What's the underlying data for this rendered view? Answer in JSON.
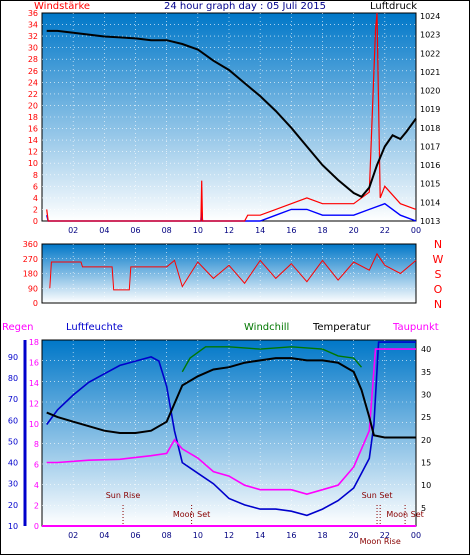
{
  "title": "24 hour graph day : 05 Juli 2015",
  "colors": {
    "frame": "#000000",
    "plot_top": "#0077c8",
    "plot_bottom": "#ffffff",
    "grid": "#ffffff",
    "wind": "#ff0000",
    "gust": "#0000ff",
    "pressure": "#000000",
    "direction": "#ff0000",
    "rain": "#ff00ff",
    "humidity": "#0000cc",
    "windchill": "#007700",
    "temperature": "#000000",
    "dewpoint": "#ff00ff",
    "sunmoon": "#880000",
    "bottom_bar": "#ff00ff"
  },
  "chart_data": [
    {
      "id": "wind",
      "type": "line",
      "left_label": "Windstärke",
      "right_label": "Luftdruck",
      "x_ticks": [
        "02",
        "04",
        "06",
        "08",
        "10",
        "12",
        "14",
        "16",
        "18",
        "20",
        "22",
        "00"
      ],
      "y_left_ticks": [
        0,
        2,
        4,
        6,
        8,
        10,
        12,
        14,
        16,
        18,
        20,
        22,
        24,
        26,
        28,
        30,
        32,
        34,
        36
      ],
      "y_left_range": [
        0,
        36
      ],
      "y_right_ticks": [
        1013,
        1014,
        1015,
        1016,
        1017,
        1018,
        1019,
        1020,
        1021,
        1022,
        1023,
        1024
      ],
      "y_right_range": [
        1013,
        1024
      ],
      "grid": true,
      "series": [
        {
          "key": "pressure",
          "axis": "right",
          "points": [
            [
              0.3,
              1023.2
            ],
            [
              1,
              1023.2
            ],
            [
              2,
              1023.1
            ],
            [
              3,
              1023
            ],
            [
              4,
              1022.9
            ],
            [
              5,
              1022.85
            ],
            [
              6,
              1022.8
            ],
            [
              7,
              1022.7
            ],
            [
              8,
              1022.7
            ],
            [
              9,
              1022.5
            ],
            [
              10,
              1022.2
            ],
            [
              11,
              1021.6
            ],
            [
              12,
              1021.1
            ],
            [
              13,
              1020.4
            ],
            [
              14,
              1019.7
            ],
            [
              15,
              1018.9
            ],
            [
              16,
              1018
            ],
            [
              17,
              1017
            ],
            [
              18,
              1016
            ],
            [
              19,
              1015.2
            ],
            [
              20,
              1014.5
            ],
            [
              20.5,
              1014.3
            ],
            [
              21,
              1014.8
            ],
            [
              21.5,
              1016
            ],
            [
              22,
              1017
            ],
            [
              22.5,
              1017.6
            ],
            [
              23,
              1017.4
            ],
            [
              23.4,
              1017.8
            ],
            [
              24,
              1018.5
            ]
          ]
        },
        {
          "key": "wind",
          "axis": "left",
          "points": [
            [
              0.3,
              2
            ],
            [
              0.4,
              0
            ],
            [
              10.2,
              0
            ],
            [
              10.25,
              7
            ],
            [
              10.3,
              0
            ],
            [
              13,
              0
            ],
            [
              13.2,
              1
            ],
            [
              14,
              1
            ],
            [
              15,
              2
            ],
            [
              16,
              3
            ],
            [
              17,
              4
            ],
            [
              18,
              3
            ],
            [
              19,
              3
            ],
            [
              20,
              3
            ],
            [
              21,
              5
            ],
            [
              21.4,
              33
            ],
            [
              21.5,
              36
            ],
            [
              21.7,
              4
            ],
            [
              22,
              6
            ],
            [
              23,
              3
            ],
            [
              24,
              2
            ]
          ]
        },
        {
          "key": "gust",
          "axis": "left",
          "points": [
            [
              0.3,
              1
            ],
            [
              0.4,
              0
            ],
            [
              10.2,
              0
            ],
            [
              10.25,
              2
            ],
            [
              10.3,
              0
            ],
            [
              14,
              0
            ],
            [
              15,
              1
            ],
            [
              16,
              2
            ],
            [
              17,
              2
            ],
            [
              18,
              1
            ],
            [
              19,
              1
            ],
            [
              20,
              1
            ],
            [
              21,
              2
            ],
            [
              22,
              3
            ],
            [
              23,
              1
            ],
            [
              24,
              0
            ]
          ]
        }
      ]
    },
    {
      "id": "direction",
      "type": "line",
      "y_left_ticks": [
        0,
        90,
        180,
        270,
        360
      ],
      "y_left_range": [
        0,
        360
      ],
      "y_right_ticks": [
        "N",
        "W",
        "S",
        "O",
        "N"
      ],
      "grid": true,
      "series": [
        {
          "key": "direction",
          "points": [
            [
              0.5,
              90
            ],
            [
              0.6,
              250
            ],
            [
              2.5,
              250
            ],
            [
              2.6,
              220
            ],
            [
              4.5,
              220
            ],
            [
              4.6,
              80
            ],
            [
              5.6,
              80
            ],
            [
              5.7,
              220
            ],
            [
              8,
              220
            ],
            [
              8.5,
              260
            ],
            [
              9,
              100
            ],
            [
              10,
              250
            ],
            [
              11,
              150
            ],
            [
              12,
              230
            ],
            [
              13,
              120
            ],
            [
              14,
              260
            ],
            [
              15,
              150
            ],
            [
              16,
              240
            ],
            [
              17,
              130
            ],
            [
              18,
              260
            ],
            [
              19,
              140
            ],
            [
              20,
              250
            ],
            [
              21,
              200
            ],
            [
              21.5,
              300
            ],
            [
              22,
              230
            ],
            [
              23,
              180
            ],
            [
              24,
              260
            ]
          ]
        }
      ]
    },
    {
      "id": "temperature",
      "type": "line",
      "labels": [
        "Regen",
        "Luftfeuchte",
        "Windchill",
        "Temperatur",
        "Taupunkt"
      ],
      "x_ticks": [
        "02",
        "04",
        "06",
        "08",
        "10",
        "12",
        "14",
        "16",
        "18",
        "20",
        "22",
        "00"
      ],
      "y_left_ticks": [
        0,
        2,
        4,
        6,
        8,
        10,
        12,
        14,
        16,
        18
      ],
      "y_left_range": [
        0,
        18
      ],
      "y_humidity_ticks": [
        10,
        20,
        30,
        40,
        50,
        60,
        70,
        80,
        90
      ],
      "y_humidity_range": [
        10,
        98
      ],
      "y_right_ticks": [
        5,
        10,
        15,
        20,
        25,
        30,
        35,
        40
      ],
      "y_right_range": [
        1,
        42
      ],
      "grid": true,
      "annotations": [
        {
          "label": "Sun Rise",
          "hour": 5.2
        },
        {
          "label": "Moon Set",
          "hour": 9.6
        },
        {
          "label": "Sun Set",
          "hour": 21.5
        },
        {
          "label": "Moon Rise",
          "hour": 21.7
        },
        {
          "label": "Moon Set",
          "hour": 23.3
        }
      ],
      "series": [
        {
          "key": "humidity",
          "axis": "humidity",
          "points": [
            [
              0.3,
              58
            ],
            [
              1,
              65
            ],
            [
              2,
              72
            ],
            [
              3,
              78
            ],
            [
              4,
              82
            ],
            [
              5,
              86
            ],
            [
              6,
              88
            ],
            [
              7,
              90
            ],
            [
              7.5,
              88
            ],
            [
              8,
              76
            ],
            [
              8.5,
              55
            ],
            [
              9,
              40
            ],
            [
              10,
              35
            ],
            [
              11,
              30
            ],
            [
              12,
              23
            ],
            [
              13,
              20
            ],
            [
              14,
              18
            ],
            [
              15,
              18
            ],
            [
              16,
              17
            ],
            [
              17,
              15
            ],
            [
              18,
              18
            ],
            [
              19,
              22
            ],
            [
              20,
              28
            ],
            [
              20.5,
              35
            ],
            [
              21,
              42
            ],
            [
              21.3,
              58
            ],
            [
              21.6,
              97
            ],
            [
              24,
              97
            ]
          ]
        },
        {
          "key": "windchill",
          "axis": "right",
          "points": [
            [
              9,
              35
            ],
            [
              9.5,
              38
            ],
            [
              10.5,
              40.5
            ],
            [
              12,
              40.5
            ],
            [
              14,
              40
            ],
            [
              16,
              40.5
            ],
            [
              18,
              40
            ],
            [
              19,
              38.5
            ],
            [
              20,
              38
            ],
            [
              20.5,
              36
            ]
          ]
        },
        {
          "key": "temperature",
          "axis": "right",
          "points": [
            [
              0.3,
              26
            ],
            [
              1,
              25
            ],
            [
              2,
              24
            ],
            [
              3,
              23
            ],
            [
              4,
              22
            ],
            [
              5,
              21.5
            ],
            [
              6,
              21.5
            ],
            [
              7,
              22
            ],
            [
              8,
              24
            ],
            [
              8.5,
              28
            ],
            [
              9,
              32
            ],
            [
              10,
              34
            ],
            [
              11,
              35.5
            ],
            [
              12,
              36
            ],
            [
              13,
              37
            ],
            [
              14,
              37.5
            ],
            [
              15,
              38
            ],
            [
              16,
              38
            ],
            [
              17,
              37.5
            ],
            [
              18,
              37.5
            ],
            [
              19,
              37
            ],
            [
              20,
              35
            ],
            [
              20.5,
              31
            ],
            [
              21,
              25
            ],
            [
              21.3,
              21
            ],
            [
              22,
              20.5
            ],
            [
              24,
              20.5
            ]
          ]
        },
        {
          "key": "dewpoint",
          "axis": "right",
          "points": [
            [
              0.3,
              15
            ],
            [
              1,
              15
            ],
            [
              3,
              15.5
            ],
            [
              5,
              15.7
            ],
            [
              7,
              16.5
            ],
            [
              8,
              17
            ],
            [
              8.5,
              20
            ],
            [
              9,
              18
            ],
            [
              10,
              16
            ],
            [
              11,
              13
            ],
            [
              12,
              12
            ],
            [
              13,
              10
            ],
            [
              14,
              9
            ],
            [
              15,
              9
            ],
            [
              16,
              9
            ],
            [
              17,
              8
            ],
            [
              18,
              9
            ],
            [
              19,
              10
            ],
            [
              20,
              14
            ],
            [
              20.5,
              18
            ],
            [
              21,
              22
            ],
            [
              21.4,
              40
            ],
            [
              24,
              40
            ]
          ]
        },
        {
          "key": "rain",
          "axis": "left",
          "points": [
            [
              0,
              0
            ],
            [
              24,
              0
            ]
          ]
        }
      ]
    }
  ]
}
